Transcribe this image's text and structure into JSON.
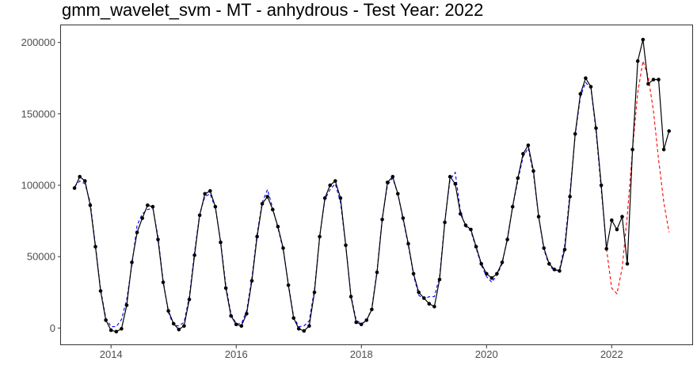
{
  "chart_data": {
    "type": "line",
    "title": "gmm_wavelet_svm - MT - anhydrous - Test Year: 2022",
    "xlabel": "",
    "ylabel": "",
    "xlim": [
      2013.2,
      2023.3
    ],
    "ylim": [
      -12000,
      212000
    ],
    "x_ticks": [
      2014,
      2016,
      2018,
      2020,
      2022
    ],
    "y_ticks": [
      0,
      50000,
      100000,
      150000,
      200000
    ],
    "x_tick_labels": [
      "2014",
      "2016",
      "2018",
      "2020",
      "2022"
    ],
    "y_tick_labels": [
      "0",
      "50000",
      "100000",
      "150000",
      "200000"
    ],
    "grid": false,
    "series": [
      {
        "style": "solid-with-points",
        "color": "#000000",
        "x": [
          "2013-06",
          "2013-07",
          "2013-08",
          "2013-09",
          "2013-10",
          "2013-11",
          "2013-12",
          "2014-01",
          "2014-02",
          "2014-03",
          "2014-04",
          "2014-05",
          "2014-06",
          "2014-07",
          "2014-08",
          "2014-09",
          "2014-10",
          "2014-11",
          "2014-12",
          "2015-01",
          "2015-02",
          "2015-03",
          "2015-04",
          "2015-05",
          "2015-06",
          "2015-07",
          "2015-08",
          "2015-09",
          "2015-10",
          "2015-11",
          "2015-12",
          "2016-01",
          "2016-02",
          "2016-03",
          "2016-04",
          "2016-05",
          "2016-06",
          "2016-07",
          "2016-08",
          "2016-09",
          "2016-10",
          "2016-11",
          "2016-12",
          "2017-01",
          "2017-02",
          "2017-03",
          "2017-04",
          "2017-05",
          "2017-06",
          "2017-07",
          "2017-08",
          "2017-09",
          "2017-10",
          "2017-11",
          "2017-12",
          "2018-01",
          "2018-02",
          "2018-03",
          "2018-04",
          "2018-05",
          "2018-06",
          "2018-07",
          "2018-08",
          "2018-09",
          "2018-10",
          "2018-11",
          "2018-12",
          "2019-01",
          "2019-02",
          "2019-03",
          "2019-04",
          "2019-05",
          "2019-06",
          "2019-07",
          "2019-08",
          "2019-09",
          "2019-10",
          "2019-11",
          "2019-12",
          "2020-01",
          "2020-02",
          "2020-03",
          "2020-04",
          "2020-05",
          "2020-06",
          "2020-07",
          "2020-08",
          "2020-09",
          "2020-10",
          "2020-11",
          "2020-12",
          "2021-01",
          "2021-02",
          "2021-03",
          "2021-04",
          "2021-05",
          "2021-06",
          "2021-07",
          "2021-08",
          "2021-09",
          "2021-10",
          "2021-11",
          "2021-12",
          "2022-01",
          "2022-02",
          "2022-03",
          "2022-04",
          "2022-05",
          "2022-06",
          "2022-07",
          "2022-08",
          "2022-09",
          "2022-10",
          "2022-11",
          "2022-12"
        ],
        "values": [
          98000,
          106000,
          103000,
          86000,
          57000,
          26000,
          5500,
          -1500,
          -2500,
          -500,
          16000,
          46000,
          67000,
          77000,
          86000,
          85000,
          62000,
          32000,
          12000,
          3000,
          -1000,
          1500,
          20000,
          51000,
          79000,
          94000,
          96000,
          85000,
          60000,
          28000,
          8500,
          2500,
          1500,
          10000,
          33000,
          64000,
          87000,
          92000,
          83000,
          71000,
          56000,
          30000,
          7000,
          -500,
          -2000,
          1500,
          25000,
          64000,
          91000,
          100000,
          103000,
          91000,
          58000,
          22000,
          4000,
          2500,
          5500,
          13000,
          39000,
          76000,
          102000,
          106000,
          94000,
          77000,
          59000,
          38000,
          25000,
          21000,
          17000,
          15000,
          34000,
          74000,
          106000,
          101000,
          80000,
          72000,
          69000,
          57000,
          45000,
          38000,
          35000,
          38000,
          46000,
          62000,
          85000,
          105000,
          122000,
          128000,
          110000,
          78000,
          56000,
          45000,
          41000,
          40000,
          55000,
          92000,
          136000,
          164000,
          175000,
          169000,
          140000,
          100000,
          55500,
          75500,
          69000,
          78000,
          45000,
          125000,
          187000,
          202000,
          171000,
          174000,
          174000,
          125000,
          138000
        ]
      },
      {
        "style": "dashed",
        "color": "#0000ff",
        "x": [
          "2013-06",
          "2013-07",
          "2013-08",
          "2013-09",
          "2013-10",
          "2013-11",
          "2013-12",
          "2014-01",
          "2014-02",
          "2014-03",
          "2014-04",
          "2014-05",
          "2014-06",
          "2014-07",
          "2014-08",
          "2014-09",
          "2014-10",
          "2014-11",
          "2014-12",
          "2015-01",
          "2015-02",
          "2015-03",
          "2015-04",
          "2015-05",
          "2015-06",
          "2015-07",
          "2015-08",
          "2015-09",
          "2015-10",
          "2015-11",
          "2015-12",
          "2016-01",
          "2016-02",
          "2016-03",
          "2016-04",
          "2016-05",
          "2016-06",
          "2016-07",
          "2016-08",
          "2016-09",
          "2016-10",
          "2016-11",
          "2016-12",
          "2017-01",
          "2017-02",
          "2017-03",
          "2017-04",
          "2017-05",
          "2017-06",
          "2017-07",
          "2017-08",
          "2017-09",
          "2017-10",
          "2017-11",
          "2017-12",
          "2018-01",
          "2018-02",
          "2018-03",
          "2018-04",
          "2018-05",
          "2018-06",
          "2018-07",
          "2018-08",
          "2018-09",
          "2018-10",
          "2018-11",
          "2018-12",
          "2019-01",
          "2019-02",
          "2019-03",
          "2019-04",
          "2019-05",
          "2019-06",
          "2019-07",
          "2019-08",
          "2019-09",
          "2019-10",
          "2019-11",
          "2019-12",
          "2020-01",
          "2020-02",
          "2020-03",
          "2020-04",
          "2020-05",
          "2020-06",
          "2020-07",
          "2020-08",
          "2020-09",
          "2020-10",
          "2020-11",
          "2020-12",
          "2021-01",
          "2021-02",
          "2021-03",
          "2021-04",
          "2021-05",
          "2021-06",
          "2021-07",
          "2021-08",
          "2021-09",
          "2021-10",
          "2021-11",
          "2021-12"
        ],
        "values": [
          99000,
          103000,
          101000,
          88000,
          58000,
          27000,
          7000,
          1000,
          1000,
          6000,
          20000,
          44000,
          72000,
          80000,
          83000,
          84000,
          64000,
          33000,
          11000,
          2000,
          1500,
          4000,
          22000,
          53000,
          80000,
          92000,
          94000,
          84000,
          61000,
          30000,
          10000,
          3000,
          3000,
          12000,
          35000,
          66000,
          88000,
          97000,
          84000,
          70000,
          55000,
          31000,
          8000,
          1000,
          1500,
          5000,
          27000,
          64000,
          90000,
          97000,
          101000,
          88000,
          58000,
          23000,
          5500,
          3000,
          5000,
          14000,
          40000,
          77000,
          100000,
          105000,
          94000,
          76000,
          58000,
          37000,
          23000,
          20000,
          22000,
          22000,
          36000,
          75000,
          104000,
          109000,
          82000,
          71000,
          68000,
          56000,
          44000,
          36000,
          32000,
          37000,
          45000,
          63000,
          85000,
          103000,
          120000,
          126000,
          108000,
          78000,
          55000,
          44000,
          40000,
          41000,
          58000,
          95000,
          135000,
          162000,
          172000,
          168000,
          138000,
          97000,
          57000
        ]
      },
      {
        "style": "dashed",
        "color": "#ff0000",
        "x": [
          "2021-12",
          "2022-01",
          "2022-02",
          "2022-03",
          "2022-04",
          "2022-05",
          "2022-06",
          "2022-07",
          "2022-08",
          "2022-09",
          "2022-10",
          "2022-11",
          "2022-12"
        ],
        "values": [
          55500,
          28000,
          24000,
          42000,
          79000,
          125000,
          165000,
          187000,
          176000,
          152000,
          118000,
          88000,
          67000
        ]
      }
    ]
  }
}
